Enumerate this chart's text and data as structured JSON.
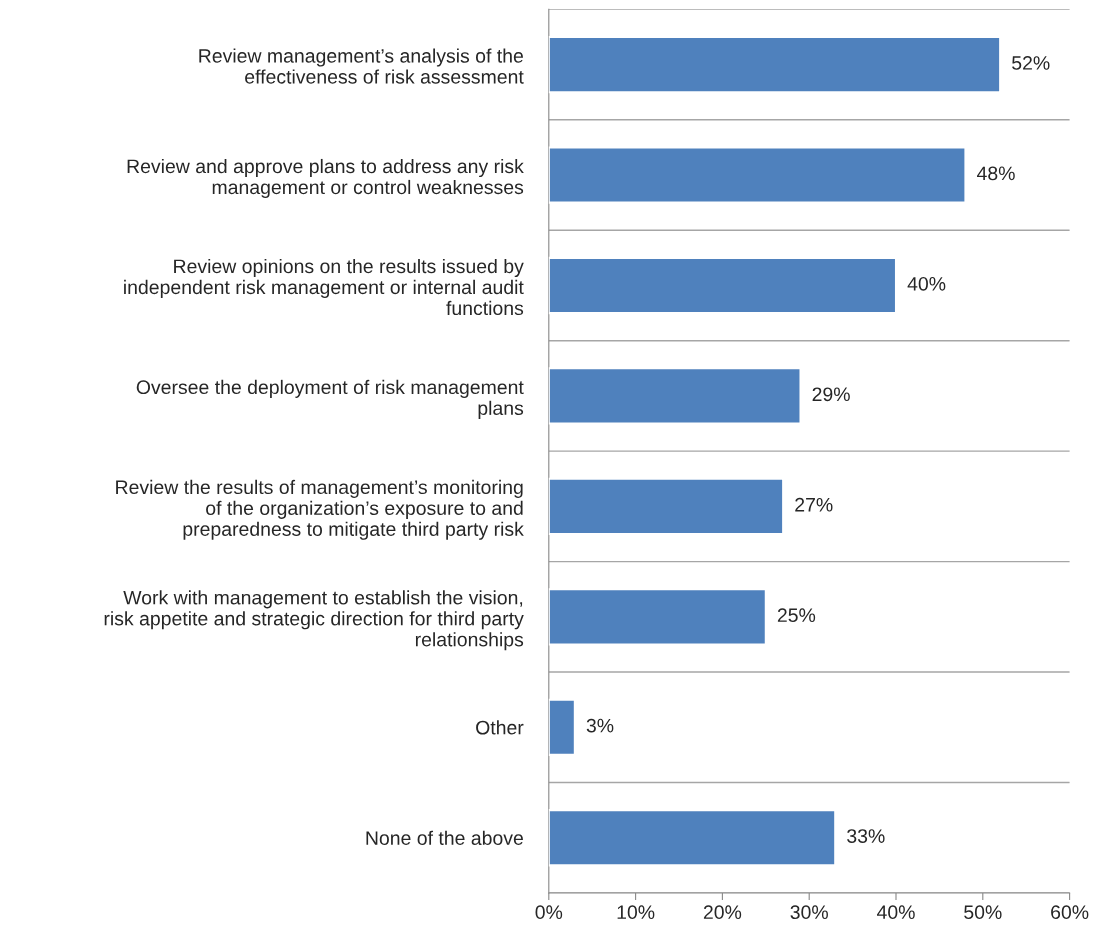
{
  "chart_data": {
    "type": "bar",
    "orientation": "horizontal",
    "categories": [
      "Review management’s analysis of the\neffectiveness of risk assessment",
      "Review and approve plans to address any risk\nmanagement or control weaknesses",
      "Review opinions on the results issued by\nindependent risk management or internal audit\nfunctions",
      "Oversee the deployment of risk management\nplans",
      "Review the results of management’s monitoring\nof the organization’s exposure to and\npreparedness to mitigate third party risk",
      "Work with management to establish the vision,\nrisk appetite and strategic direction for third party\nrelationships",
      "Other",
      "None of the above"
    ],
    "values": [
      52,
      48,
      40,
      29,
      27,
      25,
      3,
      33
    ],
    "value_labels": [
      "52%",
      "48%",
      "40%",
      "29%",
      "27%",
      "25%",
      "3%",
      "33%"
    ],
    "color": "#4f81bd",
    "xlim": [
      0,
      60
    ],
    "xticks": [
      {
        "value": 0,
        "label": "0%"
      },
      {
        "value": 10,
        "label": "10%"
      },
      {
        "value": 20,
        "label": "20%"
      },
      {
        "value": 30,
        "label": "30%"
      },
      {
        "value": 40,
        "label": "40%"
      },
      {
        "value": 50,
        "label": "50%"
      },
      {
        "value": 60,
        "label": "60%"
      }
    ],
    "grid": "y",
    "legend": false
  }
}
